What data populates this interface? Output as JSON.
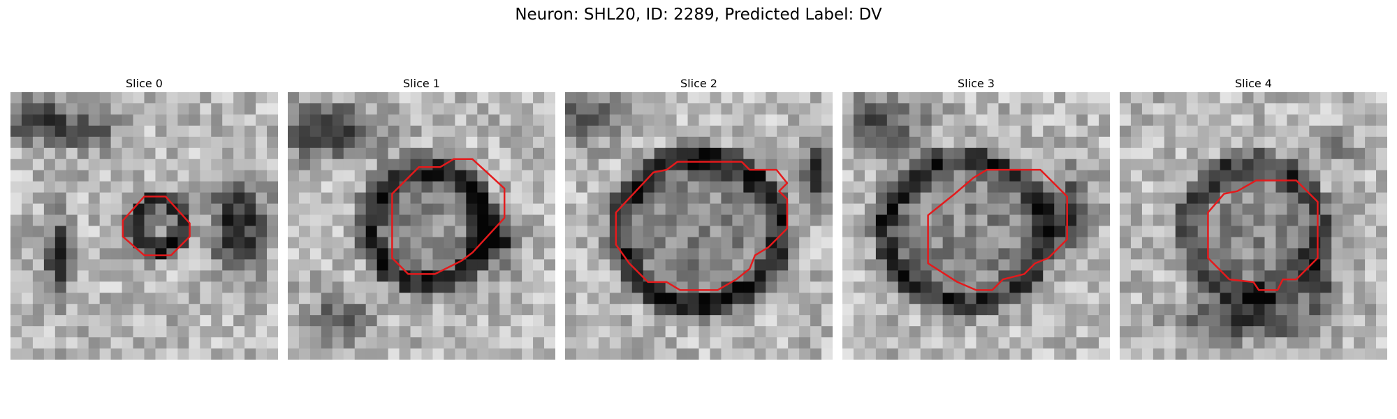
{
  "figure": {
    "title": "Neuron: SHL20, ID: 2289, Predicted Label: DV"
  },
  "colors": {
    "contour": "#e41a1c",
    "background": "#ffffff"
  },
  "panels": [
    {
      "title": "Slice 0"
    },
    {
      "title": "Slice 1"
    },
    {
      "title": "Slice 2"
    },
    {
      "title": "Slice 3"
    },
    {
      "title": "Slice 4"
    }
  ]
}
